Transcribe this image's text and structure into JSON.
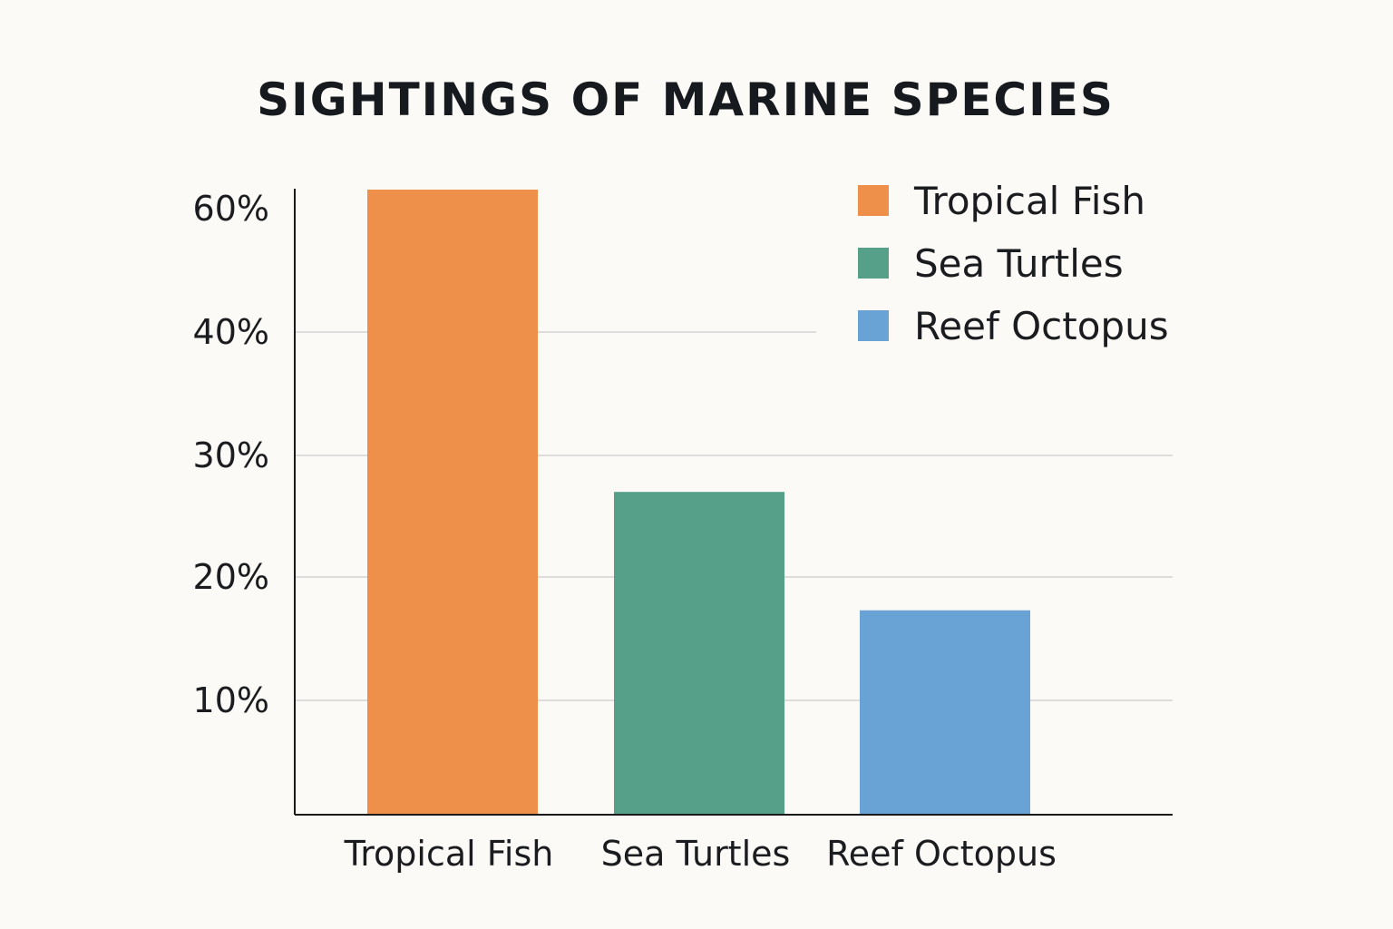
{
  "chart_data": {
    "type": "bar",
    "title": "SIGHTINGS OF MARINE SPECIES",
    "xlabel": "",
    "ylabel": "",
    "categories": [
      "Tropical Fish",
      "Sea Turtles",
      "Reef Octopus"
    ],
    "values": [
      62,
      27,
      17.3
    ],
    "colors": [
      "#ee904a",
      "#56a08a",
      "#69a3d6"
    ],
    "y_ticks": [
      {
        "value": 10,
        "label": "10%"
      },
      {
        "value": 20,
        "label": "20%"
      },
      {
        "value": 30,
        "label": "30%"
      },
      {
        "value": 40,
        "label": "40%"
      },
      {
        "value": 60,
        "label": "60%"
      }
    ],
    "ylim": [
      0,
      62
    ],
    "grid": true,
    "legend": {
      "placement": "top-right",
      "entries": [
        {
          "label": "Tropical Fish",
          "color": "#ee904a"
        },
        {
          "label": "Sea Turtles",
          "color": "#56a08a"
        },
        {
          "label": "Reef Octopus",
          "color": "#69a3d6"
        }
      ]
    }
  }
}
